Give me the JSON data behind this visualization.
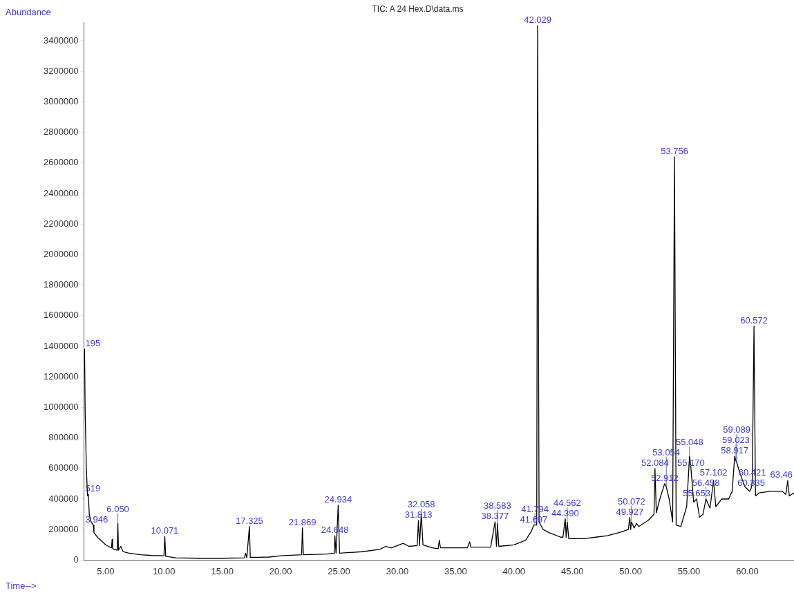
{
  "chart_data": {
    "type": "line",
    "title": "TIC: A 24 Hex.D\\data.ms",
    "xlabel": "Time-->",
    "ylabel": "Abundance",
    "x": [
      3.15,
      3.195,
      3.25,
      3.35,
      3.45,
      3.519,
      3.6,
      3.75,
      3.946,
      4.0,
      4.3,
      5.0,
      5.5,
      5.56,
      5.6,
      6.0,
      6.05,
      6.1,
      6.3,
      6.5,
      7.0,
      8.0,
      9.0,
      10.0,
      10.071,
      10.15,
      11.0,
      13.0,
      15.0,
      16.9,
      17.0,
      17.1,
      17.325,
      17.4,
      18.0,
      19.0,
      20.0,
      21.8,
      21.869,
      21.95,
      24.0,
      24.6,
      24.648,
      24.75,
      24.934,
      25.05,
      27.0,
      28.5,
      29.0,
      29.5,
      30.0,
      30.5,
      31.0,
      31.7,
      31.813,
      31.9,
      32.058,
      32.2,
      33.0,
      33.5,
      33.6,
      33.7,
      36.0,
      36.2,
      36.3,
      38.0,
      38.377,
      38.5,
      38.583,
      38.7,
      40.0,
      41.0,
      41.5,
      41.697,
      41.794,
      41.95,
      42.029,
      42.15,
      42.5,
      43.0,
      44.0,
      44.2,
      44.39,
      44.47,
      44.562,
      44.7,
      46.0,
      47.0,
      48.0,
      49.0,
      49.8,
      49.927,
      50.0,
      50.072,
      50.3,
      50.5,
      50.7,
      51.5,
      52.0,
      52.084,
      52.2,
      52.5,
      52.912,
      53.054,
      53.3,
      53.6,
      53.756,
      53.9,
      54.3,
      54.8,
      55.048,
      55.17,
      55.4,
      55.653,
      55.9,
      56.2,
      56.458,
      56.8,
      57.102,
      57.3,
      57.8,
      58.4,
      58.7,
      58.917,
      59.023,
      59.089,
      59.4,
      59.8,
      60.2,
      60.335,
      60.421,
      60.572,
      60.7,
      61.0,
      62.0,
      63.0,
      63.3,
      63.46,
      63.6,
      64.0
    ],
    "values": [
      1380000,
      1380000,
      950000,
      600000,
      420000,
      430000,
      300000,
      250000,
      230000,
      180000,
      150000,
      100000,
      80000,
      136000,
      75000,
      65000,
      240000,
      65000,
      90000,
      55000,
      45000,
      35000,
      30000,
      28000,
      155000,
      25000,
      15000,
      12000,
      12000,
      15000,
      45000,
      15000,
      220000,
      18000,
      18000,
      20000,
      28000,
      35000,
      210000,
      35000,
      40000,
      45000,
      160000,
      45000,
      360000,
      45000,
      55000,
      70000,
      90000,
      80000,
      95000,
      110000,
      90000,
      95000,
      260000,
      95000,
      300000,
      100000,
      80000,
      75000,
      130000,
      80000,
      80000,
      120000,
      85000,
      85000,
      250000,
      90000,
      240000,
      90000,
      100000,
      130000,
      190000,
      230000,
      230000,
      230000,
      3500000,
      250000,
      200000,
      180000,
      150000,
      150000,
      270000,
      150000,
      250000,
      140000,
      140000,
      150000,
      160000,
      180000,
      200000,
      280000,
      200000,
      250000,
      210000,
      240000,
      220000,
      260000,
      300000,
      600000,
      310000,
      400000,
      500000,
      480000,
      400000,
      250000,
      2640000,
      230000,
      220000,
      350000,
      680000,
      600000,
      380000,
      400000,
      280000,
      300000,
      400000,
      340000,
      520000,
      350000,
      400000,
      400000,
      450000,
      680000,
      650000,
      640000,
      560000,
      480000,
      450000,
      470000,
      520000,
      1530000,
      420000,
      440000,
      450000,
      450000,
      430000,
      520000,
      420000,
      440000
    ],
    "color": "#000000",
    "xlim": [
      3.15,
      64
    ],
    "ylim": [
      0,
      3520000
    ],
    "xticks": [
      {
        "value": 5,
        "label": "5.00"
      },
      {
        "value": 10,
        "label": "10.00"
      },
      {
        "value": 15,
        "label": "15.00"
      },
      {
        "value": 20,
        "label": "20.00"
      },
      {
        "value": 25,
        "label": "25.00"
      },
      {
        "value": 30,
        "label": "30.00"
      },
      {
        "value": 35,
        "label": "35.00"
      },
      {
        "value": 40,
        "label": "40.00"
      },
      {
        "value": 45,
        "label": "45.00"
      },
      {
        "value": 50,
        "label": "50.00"
      },
      {
        "value": 55,
        "label": "55.00"
      },
      {
        "value": 60,
        "label": "60.00"
      }
    ],
    "yticks": [
      0,
      200000,
      400000,
      600000,
      800000,
      1000000,
      1200000,
      1400000,
      1600000,
      1800000,
      2000000,
      2200000,
      2400000,
      2600000,
      2800000,
      3000000,
      3200000,
      3400000
    ],
    "annotations": [
      {
        "text": "195",
        "x": 3.195,
        "y": 1380000
      },
      {
        "text": "519",
        "x": 3.519,
        "y": 430000
      },
      {
        "text": "3.946",
        "x": 3.946,
        "y": 230000
      },
      {
        "text": "6.050",
        "x": 6.05,
        "y": 240000
      },
      {
        "text": "10.071",
        "x": 10.071,
        "y": 155000
      },
      {
        "text": "17.325",
        "x": 17.325,
        "y": 220000
      },
      {
        "text": "21.869",
        "x": 21.869,
        "y": 210000
      },
      {
        "text": "24.648",
        "x": 24.648,
        "y": 160000
      },
      {
        "text": "24.934",
        "x": 24.934,
        "y": 360000
      },
      {
        "text": "31.813",
        "x": 31.813,
        "y": 260000
      },
      {
        "text": "32.058",
        "x": 32.058,
        "y": 300000
      },
      {
        "text": "38.377",
        "x": 38.377,
        "y": 250000
      },
      {
        "text": "38.583",
        "x": 38.583,
        "y": 240000
      },
      {
        "text": "41.697",
        "x": 41.697,
        "y": 230000
      },
      {
        "text": "41.794",
        "x": 41.794,
        "y": 230000
      },
      {
        "text": "42.029",
        "x": 42.029,
        "y": 3500000
      },
      {
        "text": "44.390",
        "x": 44.39,
        "y": 270000
      },
      {
        "text": "44.562",
        "x": 44.562,
        "y": 250000
      },
      {
        "text": "49.927",
        "x": 49.927,
        "y": 280000
      },
      {
        "text": "50.072",
        "x": 50.072,
        "y": 250000
      },
      {
        "text": "52.084",
        "x": 52.084,
        "y": 600000
      },
      {
        "text": "52.912",
        "x": 52.912,
        "y": 500000
      },
      {
        "text": "53.054",
        "x": 53.054,
        "y": 480000
      },
      {
        "text": "53.756",
        "x": 53.756,
        "y": 2640000
      },
      {
        "text": "55.048",
        "x": 55.048,
        "y": 680000
      },
      {
        "text": "55.170",
        "x": 55.17,
        "y": 600000
      },
      {
        "text": "55.653",
        "x": 55.653,
        "y": 400000
      },
      {
        "text": "56.458",
        "x": 56.458,
        "y": 400000
      },
      {
        "text": "57.102",
        "x": 57.102,
        "y": 520000
      },
      {
        "text": "58.917",
        "x": 58.917,
        "y": 680000
      },
      {
        "text": "59.023",
        "x": 59.023,
        "y": 650000
      },
      {
        "text": "59.089",
        "x": 59.089,
        "y": 640000
      },
      {
        "text": "60.335",
        "x": 60.335,
        "y": 470000
      },
      {
        "text": "60.421",
        "x": 60.421,
        "y": 520000
      },
      {
        "text": "60.572",
        "x": 60.572,
        "y": 1530000
      },
      {
        "text": "63.46",
        "x": 63.46,
        "y": 520000
      }
    ]
  }
}
